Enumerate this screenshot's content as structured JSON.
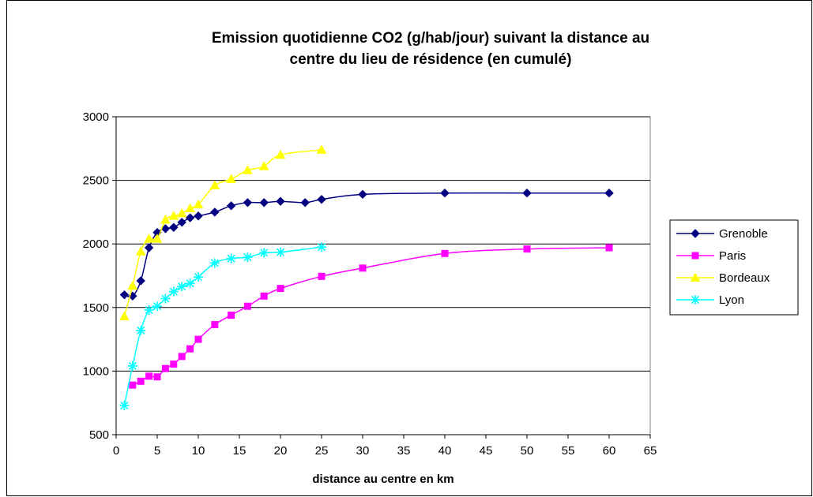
{
  "chart_data": {
    "type": "line",
    "title_lines": [
      "Emission  quotidienne CO2 (g/hab/jour) suivant la distance au",
      "centre du lieu de résidence (en cumulé)"
    ],
    "xlabel": "distance au centre en km",
    "ylabel": "",
    "xlim": [
      0,
      65
    ],
    "ylim": [
      500,
      3000
    ],
    "xticks": [
      "0",
      "5",
      "10",
      "15",
      "20",
      "25",
      "30",
      "35",
      "40",
      "45",
      "50",
      "55",
      "60",
      "65"
    ],
    "yticks": [
      "500",
      "1000",
      "1500",
      "2000",
      "2500",
      "3000"
    ],
    "grid": "horizontal",
    "legend_position": "right",
    "series": [
      {
        "name": "Grenoble",
        "color": "#000080",
        "marker": "diamond",
        "x": [
          1,
          2,
          3,
          4,
          5,
          6,
          7,
          8,
          9,
          10,
          12,
          14,
          16,
          18,
          20,
          23,
          25,
          30,
          40,
          50,
          60
        ],
        "y": [
          1600,
          1590,
          1710,
          1970,
          2090,
          2120,
          2130,
          2170,
          2205,
          2220,
          2250,
          2300,
          2325,
          2325,
          2335,
          2325,
          2350,
          2390,
          2400,
          2400,
          2400
        ]
      },
      {
        "name": "Paris",
        "color": "#FF00FF",
        "marker": "square",
        "x": [
          2,
          3,
          4,
          5,
          6,
          7,
          8,
          9,
          10,
          12,
          14,
          16,
          18,
          20,
          25,
          30,
          40,
          50,
          60
        ],
        "y": [
          890,
          920,
          960,
          955,
          1020,
          1055,
          1115,
          1175,
          1250,
          1365,
          1440,
          1510,
          1590,
          1650,
          1745,
          1810,
          1925,
          1960,
          1970
        ]
      },
      {
        "name": "Bordeaux",
        "color": "#FFFF00",
        "marker": "triangle",
        "x": [
          1,
          2,
          3,
          4,
          5,
          6,
          7,
          8,
          9,
          10,
          12,
          14,
          16,
          18,
          20,
          25
        ],
        "y": [
          1430,
          1670,
          1940,
          2040,
          2040,
          2190,
          2220,
          2240,
          2280,
          2310,
          2460,
          2510,
          2580,
          2610,
          2700,
          2740
        ]
      },
      {
        "name": "Lyon",
        "color": "#00FFFF",
        "marker": "star",
        "x": [
          1,
          2,
          3,
          4,
          5,
          6,
          7,
          8,
          9,
          10,
          12,
          14,
          16,
          18,
          20,
          25
        ],
        "y": [
          730,
          1040,
          1320,
          1480,
          1510,
          1570,
          1625,
          1665,
          1690,
          1740,
          1850,
          1885,
          1895,
          1930,
          1935,
          1975
        ]
      }
    ]
  }
}
